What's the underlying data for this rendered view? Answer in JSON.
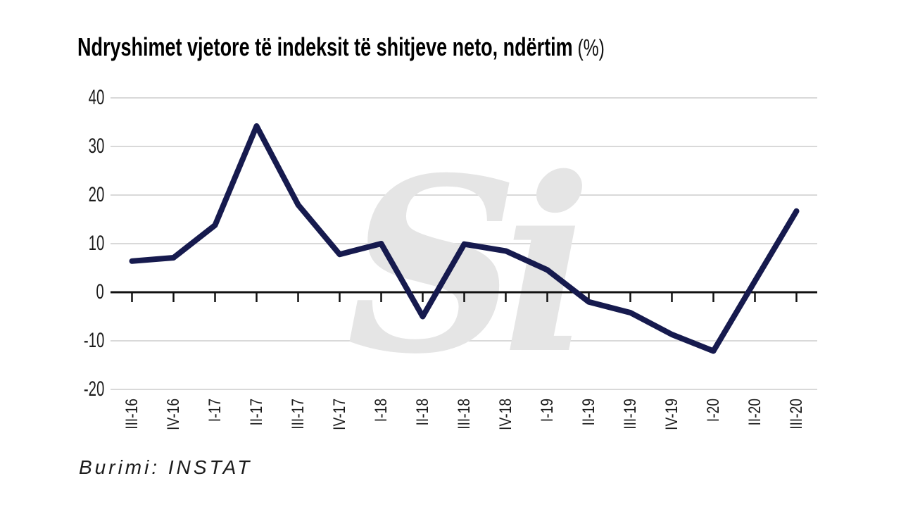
{
  "title": {
    "main": "Ndryshimet vjetore të indeksit të shitjeve neto, ndërtim",
    "unit": "(%)"
  },
  "source": "Burimi: INSTAT",
  "watermark": "Si",
  "colors": {
    "line": "#161a4e",
    "grid": "#d9d9d9",
    "axis": "#111111",
    "label_text": "#1c1c1c",
    "watermark": "#e5e5e5",
    "background": "#ffffff"
  },
  "chart_data": {
    "type": "line",
    "title": "Ndryshimet vjetore të indeksit të shitjeve neto, ndërtim (%)",
    "categories": [
      "III-16",
      "IV-16",
      "I-17",
      "II-17",
      "III-17",
      "IV-17",
      "I-18",
      "II-18",
      "III-18",
      "IV-18",
      "I-19",
      "II-19",
      "III-19",
      "IV-19",
      "I-20",
      "II-20",
      "III-20"
    ],
    "values": [
      6.4,
      7.1,
      13.8,
      34.2,
      18.0,
      7.8,
      10.0,
      -5.0,
      9.9,
      8.5,
      4.6,
      -2.0,
      -4.2,
      -8.7,
      -12.1,
      2.3,
      16.7
    ],
    "xlabel": "",
    "ylabel": "",
    "ylim": [
      -20,
      40
    ],
    "yticks": [
      40,
      30,
      20,
      10,
      0,
      -10,
      -20
    ],
    "grid": "horizontal gridlines at yticks, zero line emphasized as black axis with category tick marks",
    "legend": "none",
    "source": "Burimi: INSTAT"
  }
}
